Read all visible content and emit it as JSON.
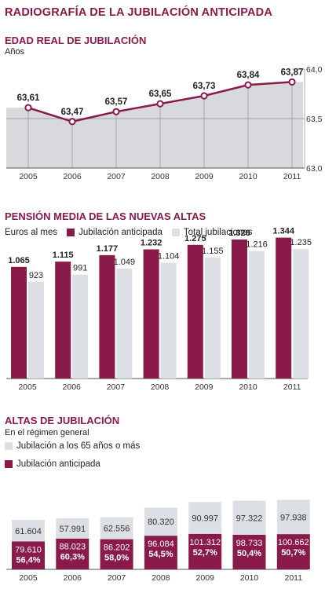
{
  "title": "RADIOGRAFÍA DE LA JUBILACIÓN ANTICIPADA",
  "colors": {
    "accent": "#8a1a4a",
    "bar_dark": "#8a1a4a",
    "bar_light": "#dcdfe3",
    "area": "#d7d9dc"
  },
  "chart_data": [
    {
      "type": "area",
      "title": "EDAD REAL DE JUBILACIÓN",
      "subtitle": "Años",
      "x": [
        "2005",
        "2006",
        "2007",
        "2008",
        "2009",
        "2010",
        "2011"
      ],
      "values": [
        63.61,
        63.47,
        63.57,
        63.65,
        63.73,
        63.84,
        63.87
      ],
      "value_labels": [
        "63,61",
        "63,47",
        "63,57",
        "63,65",
        "63,73",
        "63,84",
        "63,87"
      ],
      "ylim": [
        63.0,
        64.0
      ],
      "yticks": [
        "63,0",
        "63,5",
        "64,0"
      ],
      "ytick_values": [
        63.0,
        63.5,
        64.0
      ],
      "axis_position": "right"
    },
    {
      "type": "bar",
      "title": "PENSIÓN MEDIA DE LAS NUEVAS ALTAS",
      "subtitle": "Euros al mes",
      "categories": [
        "2005",
        "2006",
        "2007",
        "2008",
        "2009",
        "2010",
        "2011"
      ],
      "series": [
        {
          "name": "Jubilación anticipada",
          "values": [
            1065,
            1115,
            1177,
            1232,
            1275,
            1326,
            1344
          ],
          "labels": [
            "1.065",
            "1.115",
            "1.177",
            "1.232",
            "1.275",
            "1.326",
            "1.344"
          ]
        },
        {
          "name": "Total jubilaciones",
          "values": [
            923,
            991,
            1049,
            1104,
            1155,
            1216,
            1235
          ],
          "labels": [
            "923",
            "991",
            "1.049",
            "1.104",
            "1.155",
            "1.216",
            "1.235"
          ]
        }
      ],
      "legend_position": "top"
    },
    {
      "type": "bar",
      "stacked": true,
      "title": "ALTAS DE JUBILACIÓN",
      "subtitle": "En el régimen general",
      "categories": [
        "2005",
        "2006",
        "2007",
        "2008",
        "2009",
        "2010",
        "2011"
      ],
      "series": [
        {
          "name": "Jubilación anticipada",
          "values": [
            79610,
            88023,
            86202,
            96084,
            101312,
            98733,
            100662
          ],
          "labels": [
            "79.610",
            "88.023",
            "86.202",
            "96.084",
            "101.312",
            "98.733",
            "100.662"
          ],
          "percent_labels": [
            "56,4%",
            "60,3%",
            "58,0%",
            "54,5%",
            "52,7%",
            "50,4%",
            "50,7%"
          ]
        },
        {
          "name": "Jubilación a los 65 años o más",
          "values": [
            61604,
            57991,
            62556,
            80320,
            90997,
            97322,
            97938
          ],
          "labels": [
            "61.604",
            "57.991",
            "62.556",
            "80.320",
            "90.997",
            "97.322",
            "97.938"
          ]
        }
      ],
      "legend_position": "top-left"
    }
  ]
}
